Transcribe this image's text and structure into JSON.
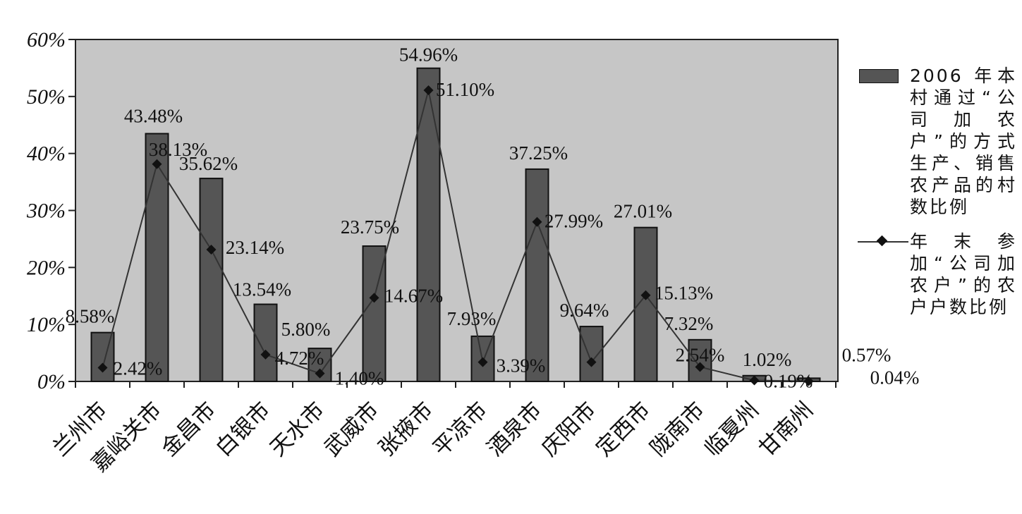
{
  "chart_data": {
    "type": "bar",
    "categories": [
      "兰州市",
      "嘉峪关市",
      "金昌市",
      "白银市",
      "天水市",
      "武威市",
      "张掖市",
      "平凉市",
      "酒泉市",
      "庆阳市",
      "定西市",
      "陇南市",
      "临夏州",
      "甘南州"
    ],
    "series": [
      {
        "name": "2006年本村通过“公司加农户”的方式生产、销售农产品的村数比例",
        "kind": "bar",
        "values": [
          8.58,
          43.48,
          35.62,
          13.54,
          5.8,
          23.75,
          54.96,
          7.93,
          37.25,
          9.64,
          27.01,
          7.32,
          1.02,
          0.57
        ],
        "labels": [
          "8.58%",
          "43.48%",
          "35.62%",
          "13.54%",
          "5.80%",
          "23.75%",
          "54.96%",
          "7.93%",
          "37.25%",
          "9.64%",
          "27.01%",
          "7.32%",
          "1.02%",
          "0.57%"
        ]
      },
      {
        "name": "年末参加“公司加农户”的农户户数比例",
        "kind": "line",
        "values": [
          2.42,
          38.13,
          23.14,
          4.72,
          1.4,
          14.67,
          51.1,
          3.39,
          27.99,
          3.39,
          15.13,
          2.54,
          0.19,
          0.04
        ],
        "labels": [
          "2.42%",
          "38.13%",
          "23.14%",
          "4.72%",
          "1.40%",
          "14.67%",
          "51.10%",
          "3.39%",
          "27.99%",
          "",
          "15.13%",
          "2.54%",
          "0.19%",
          "0.04%"
        ]
      }
    ],
    "yticks": [
      "0%",
      "10%",
      "20%",
      "30%",
      "40%",
      "50%",
      "60%"
    ],
    "ylim": [
      0,
      60
    ],
    "legend_position": "right",
    "colors": {
      "plot_bg": "#c6c6c6",
      "bar": "#555555",
      "line": "#333333",
      "marker": "#111111"
    }
  },
  "legend": {
    "bar_text": "2006 年本村通过“公司加农户”的方式生产、销售农产品的村数比例",
    "line_text": "年末参加“公司加农户”的农户户数比例"
  }
}
